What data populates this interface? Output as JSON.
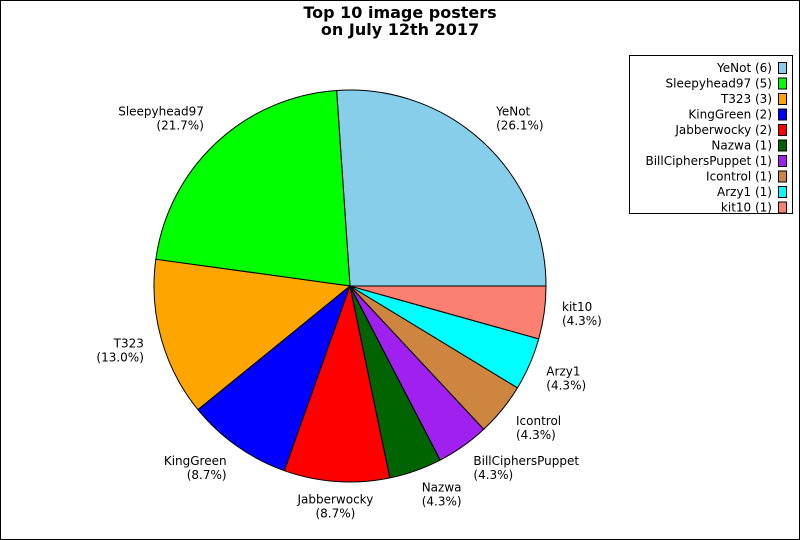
{
  "chart_data": {
    "type": "pie",
    "title_lines": [
      "Top 10 image posters",
      "on July 12th 2017"
    ],
    "slices": [
      {
        "label": "YeNot",
        "count": 6,
        "percent": "26.1%",
        "color": "#87CEEB",
        "legend": "YeNot (6)"
      },
      {
        "label": "Sleepyhead97",
        "count": 5,
        "percent": "21.7%",
        "color": "#00FF00",
        "legend": "Sleepyhead97 (5)"
      },
      {
        "label": "T323",
        "count": 3,
        "percent": "13.0%",
        "color": "#FFA500",
        "legend": "T323 (3)"
      },
      {
        "label": "KingGreen",
        "count": 2,
        "percent": "8.7%",
        "color": "#0000FF",
        "legend": "KingGreen (2)"
      },
      {
        "label": "Jabberwocky",
        "count": 2,
        "percent": "8.7%",
        "color": "#FF0000",
        "legend": "Jabberwocky (2)"
      },
      {
        "label": "Nazwa",
        "count": 1,
        "percent": "4.3%",
        "color": "#006400",
        "legend": "Nazwa (1)"
      },
      {
        "label": "BillCiphersPuppet",
        "count": 1,
        "percent": "4.3%",
        "color": "#A020F0",
        "legend": "BillCiphersPuppet (1)"
      },
      {
        "label": "Icontrol",
        "count": 1,
        "percent": "4.3%",
        "color": "#CD853F",
        "legend": "Icontrol (1)"
      },
      {
        "label": "Arzy1",
        "count": 1,
        "percent": "4.3%",
        "color": "#00FFFF",
        "legend": "Arzy1 (1)"
      },
      {
        "label": "kit10",
        "count": 1,
        "percent": "4.3%",
        "color": "#FA8072",
        "legend": "kit10 (1)"
      }
    ],
    "start_angle": "east",
    "direction": "counterclockwise",
    "legend_position": "top-right"
  }
}
